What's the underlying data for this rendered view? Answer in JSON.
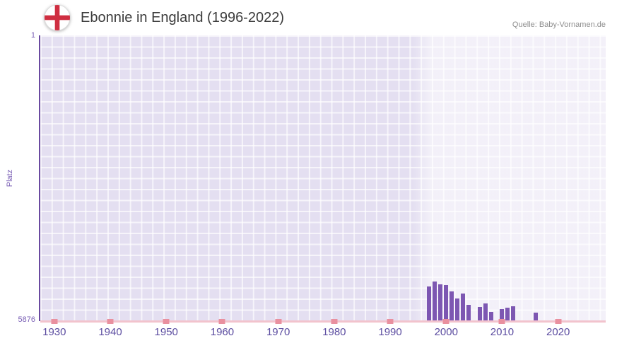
{
  "header": {
    "title": "Ebonnie in England (1996-2022)",
    "source": "Quelle: Baby-Vornamen.de",
    "flag_icon": "england-st-george-cross-flag"
  },
  "chart_data": {
    "type": "bar",
    "title": "Ebonnie in England (1996-2022)",
    "xlabel": "",
    "ylabel": "Platz",
    "y_axis_inverted": true,
    "ylim": [
      1,
      5876
    ],
    "y_tick_top": "1",
    "y_tick_bottom": "5876",
    "x_range": [
      1927.5,
      2028.5
    ],
    "x_ticks": [
      1930,
      1940,
      1950,
      1960,
      1970,
      1980,
      1990,
      2000,
      2010,
      2020
    ],
    "grid": true,
    "legend": false,
    "highlight_band": {
      "start_year": 1994,
      "end_year": 2028.5
    },
    "series": [
      {
        "name": "Platz",
        "points": [
          {
            "year": 1997,
            "rank": 5180
          },
          {
            "year": 1998,
            "rank": 5080
          },
          {
            "year": 1999,
            "rank": 5130
          },
          {
            "year": 2000,
            "rank": 5150
          },
          {
            "year": 2001,
            "rank": 5280
          },
          {
            "year": 2002,
            "rank": 5420
          },
          {
            "year": 2003,
            "rank": 5320
          },
          {
            "year": 2004,
            "rank": 5560
          },
          {
            "year": 2006,
            "rank": 5600
          },
          {
            "year": 2007,
            "rank": 5520
          },
          {
            "year": 2008,
            "rank": 5700
          },
          {
            "year": 2010,
            "rank": 5640
          },
          {
            "year": 2011,
            "rank": 5620
          },
          {
            "year": 2012,
            "rank": 5590
          },
          {
            "year": 2016,
            "rank": 5720
          }
        ]
      }
    ],
    "colors": {
      "bar": "#7d57b2",
      "plot_background": "#e4dff1",
      "highlight_overlay": "rgba(255,255,255,0.55)",
      "y_axis": "#6a4aa0",
      "x_axis_line": "#f2c3cd",
      "x_tick_mark": "#e9909f",
      "tick_label": "#5b4ca0",
      "title_text": "#3b3b3b",
      "source_text": "#8e8e8e",
      "flag_cross": "#cf2e41"
    }
  }
}
